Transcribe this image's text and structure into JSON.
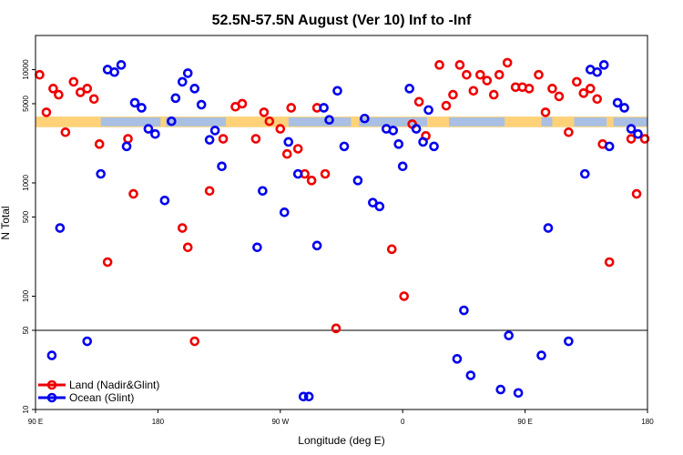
{
  "chart_data": {
    "type": "scatter",
    "title": "52.5N-57.5N August (Ver 10)   Inf to -Inf",
    "xlabel": "Longitude (deg E)",
    "ylabel": "N Total",
    "x_axis": {
      "range_deg_from_90E": [
        0,
        360
      ],
      "ticks": [
        {
          "pos": 0,
          "label": "90 E"
        },
        {
          "pos": 90,
          "label": "180"
        },
        {
          "pos": 180,
          "label": "90 W"
        },
        {
          "pos": 270,
          "label": "0"
        },
        {
          "pos": 360,
          "label": "90 E"
        },
        {
          "pos": 450,
          "label": "180"
        }
      ],
      "range": [
        0,
        450
      ]
    },
    "y_axis": {
      "scale": "log",
      "range": [
        10,
        20000
      ],
      "ticks": [
        10,
        50,
        100,
        500,
        1000,
        5000,
        10000
      ],
      "tick_labels": [
        "10",
        "50",
        "100",
        "500",
        "1000",
        "5000",
        "10000"
      ],
      "reference_line": 50
    },
    "land_band": {
      "y_low": 3100,
      "y_high": 3850,
      "color_land": "#ffd27a",
      "color_ocean": "#a9bfe3"
    },
    "colors": {
      "land": "#ee0000",
      "ocean": "#0000ee"
    },
    "legend": {
      "position": "bottom-left",
      "entries": [
        "Land (Nadir&Glint)",
        "Ocean (Glint)"
      ]
    },
    "series": [
      {
        "name": "Land (Nadir&Glint)",
        "color": "#ee0000",
        "points": [
          [
            3,
            9000
          ],
          [
            8,
            4200
          ],
          [
            13,
            6800
          ],
          [
            17,
            6000
          ],
          [
            22,
            2800
          ],
          [
            28,
            7800
          ],
          [
            33,
            6300
          ],
          [
            38,
            6800
          ],
          [
            43,
            5500
          ],
          [
            47,
            2200
          ],
          [
            53,
            200
          ],
          [
            68,
            2450
          ],
          [
            72,
            800
          ],
          [
            108,
            400
          ],
          [
            112,
            270
          ],
          [
            117,
            40
          ],
          [
            128,
            850
          ],
          [
            138,
            2450
          ],
          [
            147,
            4700
          ],
          [
            152,
            5000
          ],
          [
            162,
            2450
          ],
          [
            168,
            4200
          ],
          [
            172,
            3500
          ],
          [
            180,
            3000
          ],
          [
            185,
            1800
          ],
          [
            188,
            4600
          ],
          [
            193,
            2000
          ],
          [
            198,
            1200
          ],
          [
            203,
            1050
          ],
          [
            207,
            4600
          ],
          [
            213,
            1200
          ],
          [
            221,
            52
          ],
          [
            262,
            260
          ],
          [
            271,
            100
          ],
          [
            277,
            3300
          ],
          [
            282,
            5200
          ],
          [
            287,
            2600
          ],
          [
            297,
            11000
          ],
          [
            302,
            4800
          ],
          [
            307,
            6000
          ],
          [
            312,
            11000
          ],
          [
            317,
            9000
          ],
          [
            322,
            6500
          ],
          [
            327,
            9000
          ],
          [
            332,
            8000
          ],
          [
            337,
            6000
          ],
          [
            341,
            9000
          ],
          [
            347,
            11500
          ],
          [
            353,
            7000
          ],
          [
            358,
            7000
          ],
          [
            363,
            6800
          ],
          [
            370,
            9000
          ],
          [
            375,
            4200
          ],
          [
            380,
            6800
          ],
          [
            385,
            5800
          ],
          [
            392,
            2800
          ],
          [
            398,
            7800
          ],
          [
            403,
            6200
          ],
          [
            408,
            6800
          ],
          [
            413,
            5500
          ],
          [
            417,
            2200
          ],
          [
            422,
            200
          ],
          [
            438,
            2450
          ],
          [
            442,
            800
          ],
          [
            448,
            2450
          ]
        ]
      },
      {
        "name": "Ocean (Glint)",
        "color": "#0000ee",
        "points": [
          [
            12,
            30
          ],
          [
            18,
            400
          ],
          [
            38,
            40
          ],
          [
            48,
            1200
          ],
          [
            53,
            10000
          ],
          [
            58,
            9500
          ],
          [
            63,
            11000
          ],
          [
            67,
            2100
          ],
          [
            73,
            5100
          ],
          [
            78,
            4600
          ],
          [
            83,
            3000
          ],
          [
            88,
            2700
          ],
          [
            95,
            700
          ],
          [
            100,
            3500
          ],
          [
            103,
            5600
          ],
          [
            108,
            7800
          ],
          [
            112,
            9300
          ],
          [
            117,
            6800
          ],
          [
            122,
            4900
          ],
          [
            128,
            2400
          ],
          [
            132,
            2900
          ],
          [
            137,
            1400
          ],
          [
            163,
            270
          ],
          [
            167,
            850
          ],
          [
            183,
            550
          ],
          [
            186,
            2300
          ],
          [
            193,
            1200
          ],
          [
            197,
            13
          ],
          [
            201,
            13
          ],
          [
            207,
            280
          ],
          [
            212,
            4600
          ],
          [
            216,
            3600
          ],
          [
            222,
            6500
          ],
          [
            227,
            2100
          ],
          [
            237,
            1050
          ],
          [
            242,
            3700
          ],
          [
            248,
            670
          ],
          [
            253,
            620
          ],
          [
            258,
            3000
          ],
          [
            263,
            2900
          ],
          [
            267,
            2200
          ],
          [
            270,
            1400
          ],
          [
            275,
            6800
          ],
          [
            280,
            3000
          ],
          [
            285,
            2300
          ],
          [
            289,
            4400
          ],
          [
            293,
            2100
          ],
          [
            310,
            28
          ],
          [
            315,
            75
          ],
          [
            320,
            20
          ],
          [
            342,
            15
          ],
          [
            348,
            45
          ],
          [
            355,
            14
          ],
          [
            372,
            30
          ],
          [
            377,
            400
          ],
          [
            392,
            40
          ],
          [
            404,
            1200
          ],
          [
            408,
            10000
          ],
          [
            413,
            9500
          ],
          [
            418,
            11000
          ],
          [
            422,
            2100
          ],
          [
            428,
            5100
          ],
          [
            433,
            4600
          ],
          [
            438,
            3000
          ],
          [
            443,
            2700
          ]
        ]
      }
    ]
  }
}
